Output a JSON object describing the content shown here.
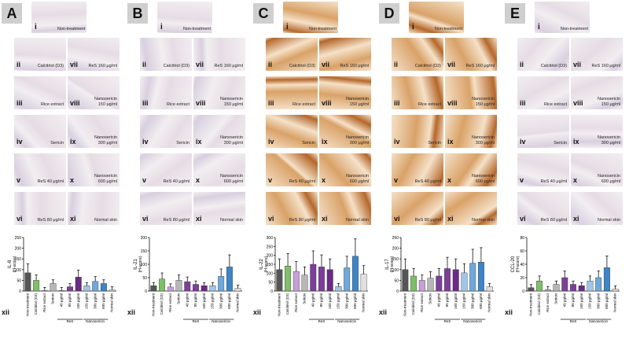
{
  "figure": {
    "panels": [
      {
        "letter": "A",
        "stain": "pale",
        "ylabel": "IL-8\n(H-score)",
        "yticks": [
          "0",
          "50",
          "100",
          "150",
          "200",
          "250"
        ],
        "ymax": 250,
        "values": [
          85,
          50,
          2,
          35,
          2,
          20,
          65,
          25,
          45,
          35,
          5
        ]
      },
      {
        "letter": "B",
        "stain": "pale",
        "ylabel": "IL-21\n(H-score)",
        "yticks": [
          "0",
          "50",
          "100",
          "150",
          "200"
        ],
        "ymax": 200,
        "values": [
          20,
          45,
          15,
          40,
          35,
          25,
          20,
          20,
          55,
          90,
          10
        ]
      },
      {
        "letter": "C",
        "stain": "brown",
        "ylabel": "IL-22\n(H-score)",
        "yticks": [
          "0",
          "50",
          "100",
          "150",
          "200",
          "250",
          "300"
        ],
        "ymax": 300,
        "values": [
          120,
          140,
          110,
          90,
          150,
          135,
          120,
          25,
          130,
          195,
          95
        ]
      },
      {
        "letter": "D",
        "stain": "brown",
        "ylabel": "IL-17\n(H-score)",
        "yticks": [
          "0",
          "50",
          "100",
          "150",
          "200",
          "250"
        ],
        "ymax": 250,
        "values": [
          100,
          70,
          50,
          60,
          70,
          105,
          100,
          85,
          130,
          135,
          20
        ]
      },
      {
        "letter": "E",
        "stain": "pale",
        "ylabel": "CCL-20\n(H-score)",
        "yticks": [
          "0",
          "20",
          "40",
          "60",
          "80"
        ],
        "ymax": 80,
        "values": [
          5,
          15,
          2,
          10,
          20,
          10,
          8,
          15,
          20,
          35,
          3
        ]
      }
    ],
    "tile_labels": {
      "i": [
        "i",
        "Non-treatment"
      ],
      "ii": [
        "ii",
        "Calcitriol (D3)"
      ],
      "iii": [
        "iii",
        "Rice extract"
      ],
      "iv": [
        "iv",
        "Sericin"
      ],
      "v": [
        "v",
        "ReS 40 μg/ml"
      ],
      "vi": [
        "vi",
        "ReS 80 μg/ml"
      ],
      "vii": [
        "vii",
        "ReS 160 μg/ml"
      ],
      "viii": [
        "viii",
        "Nanosericin\n150 μg/ml"
      ],
      "ix": [
        "ix",
        "Nanosericin\n300 μg/ml"
      ],
      "x": [
        "x",
        "Nanosericin\n600 μg/ml"
      ],
      "xi": [
        "xi",
        "Normal skin"
      ]
    },
    "panel_xii_label": "xii",
    "categories": [
      "Non-treatment",
      "Calcitriol (D3)",
      "Rice extract",
      "Sericin",
      "40 μg/ml",
      "80 μg/ml",
      "160 μg/ml",
      "150 μg/ml",
      "300 μg/ml",
      "600 μg/ml",
      "Normal skin"
    ],
    "group_labels": {
      "res": "ReS",
      "nano": "Nanosericin"
    },
    "bar_colors": [
      "#555555",
      "#7fbf6a",
      "#c7a0d8",
      "#b7b7b7",
      "#7b3f99",
      "#7b3f99",
      "#6a2a86",
      "#9fc5e8",
      "#6fa8dc",
      "#3d85c6",
      "#e0e0e0"
    ],
    "stain_colors": {
      "pale": [
        "#f2eef0",
        "#e6dde4",
        "#d9cfe0"
      ],
      "brown": [
        "#f5e1c8",
        "#d9a268",
        "#b5672a"
      ]
    }
  }
}
